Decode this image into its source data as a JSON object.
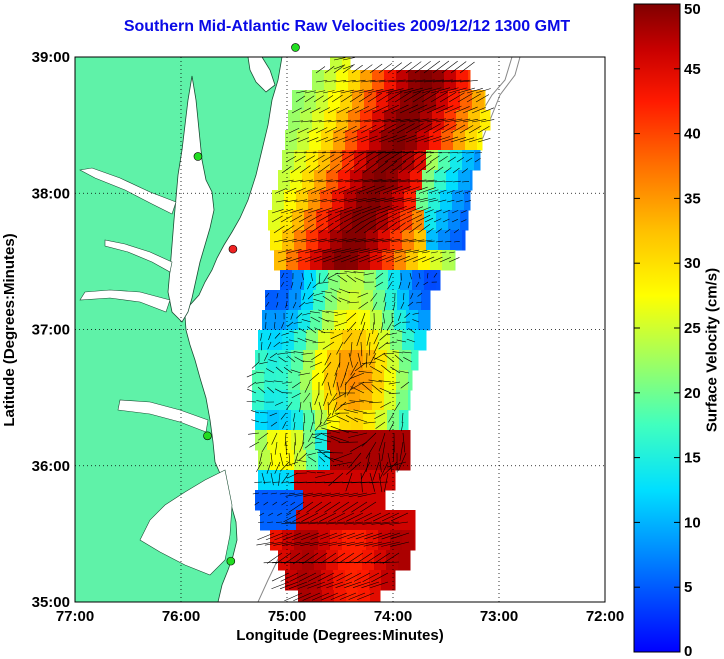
{
  "title": "Southern Mid-Atlantic Raw Velocities 2009/12/12 1300 GMT",
  "x_axis": {
    "label": "Longitude (Degrees:Minutes)",
    "ticks": [
      {
        "value": -77,
        "label": "77:00"
      },
      {
        "value": -76,
        "label": "76:00"
      },
      {
        "value": -75,
        "label": "75:00"
      },
      {
        "value": -74,
        "label": "74:00"
      },
      {
        "value": -73,
        "label": "73:00"
      },
      {
        "value": -72,
        "label": "72:00"
      }
    ]
  },
  "y_axis": {
    "label": "Latitude (Degrees:Minutes)",
    "ticks": [
      {
        "value": 39,
        "label": "39:00"
      },
      {
        "value": 38,
        "label": "38:00"
      },
      {
        "value": 37,
        "label": "37:00"
      },
      {
        "value": 36,
        "label": "36:00"
      },
      {
        "value": 35,
        "label": "35:00"
      }
    ]
  },
  "colorbar": {
    "label": "Surface Velocity (cm/s)",
    "min": 0,
    "max": 50,
    "ticks": [
      "0",
      "5",
      "10",
      "15",
      "20",
      "25",
      "30",
      "35",
      "40",
      "45",
      "50"
    ]
  },
  "colors": {
    "land": "#5ff2a8",
    "title": "#0a0ae6",
    "arrows": "#000000"
  },
  "stations": [
    {
      "lon": -74.92,
      "lat": 39.07,
      "color": "#22dd22"
    },
    {
      "lon": -75.84,
      "lat": 38.27,
      "color": "#22dd22"
    },
    {
      "lon": -75.51,
      "lat": 37.59,
      "color": "#ee2222"
    },
    {
      "lon": -75.75,
      "lat": 36.22,
      "color": "#22dd22"
    },
    {
      "lon": -75.53,
      "lat": 35.3,
      "color": "#22dd22"
    }
  ]
}
